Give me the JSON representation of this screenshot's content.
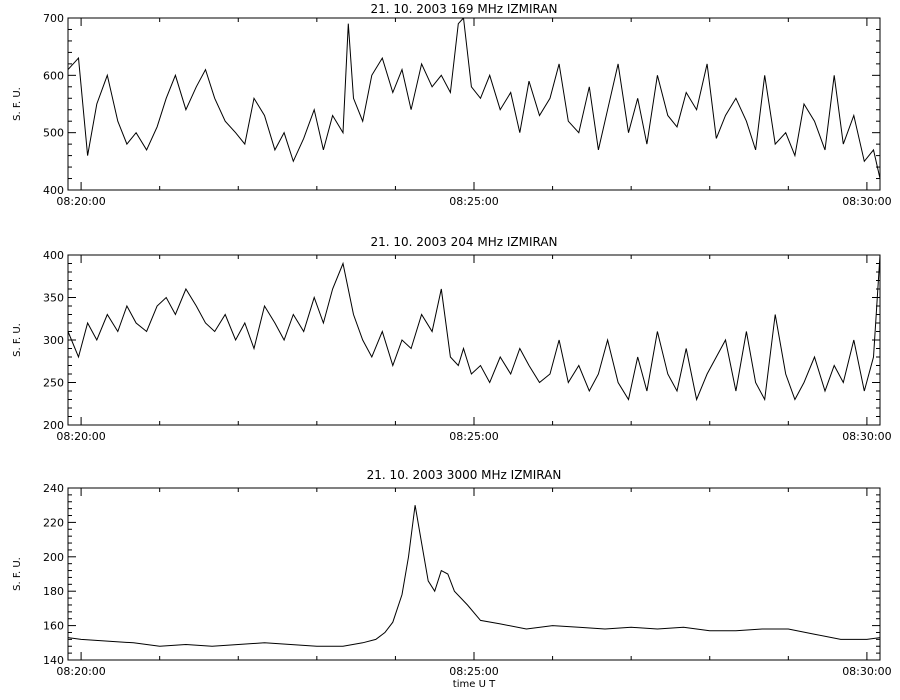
{
  "chart_data": [
    {
      "type": "line",
      "title": "21.  10.  2003    169 MHz    IZMIRAN",
      "ylabel": "S. F. U.",
      "xlabel": "",
      "xlim": [
        "08:19:50",
        "08:30:10"
      ],
      "ylim": [
        400,
        700
      ],
      "yticks": [
        400,
        500,
        600,
        700
      ],
      "xtick_labels": [
        "08:20:00",
        "08:25:00",
        "08:30:00"
      ],
      "series": [
        {
          "x": [
            "08:19:50",
            "08:19:58",
            "08:20:05",
            "08:20:12",
            "08:20:20",
            "08:20:28",
            "08:20:35",
            "08:20:42",
            "08:20:50",
            "08:20:58",
            "08:21:05",
            "08:21:12",
            "08:21:20",
            "08:21:28",
            "08:21:35",
            "08:21:42",
            "08:21:50",
            "08:21:58",
            "08:22:05",
            "08:22:12",
            "08:22:20",
            "08:22:28",
            "08:22:35",
            "08:22:42",
            "08:22:50",
            "08:22:58",
            "08:23:05",
            "08:23:12",
            "08:23:20",
            "08:23:24",
            "08:23:28",
            "08:23:35",
            "08:23:42",
            "08:23:50",
            "08:23:58",
            "08:24:05",
            "08:24:12",
            "08:24:20",
            "08:24:28",
            "08:24:35",
            "08:24:42",
            "08:24:48",
            "08:24:52",
            "08:24:58",
            "08:25:05",
            "08:25:12",
            "08:25:20",
            "08:25:28",
            "08:25:35",
            "08:25:42",
            "08:25:50",
            "08:25:58",
            "08:26:05",
            "08:26:12",
            "08:26:20",
            "08:26:28",
            "08:26:35",
            "08:26:42",
            "08:26:50",
            "08:26:58",
            "08:27:05",
            "08:27:12",
            "08:27:20",
            "08:27:28",
            "08:27:35",
            "08:27:42",
            "08:27:50",
            "08:27:58",
            "08:28:05",
            "08:28:12",
            "08:28:20",
            "08:28:28",
            "08:28:35",
            "08:28:42",
            "08:28:50",
            "08:28:58",
            "08:29:05",
            "08:29:12",
            "08:29:20",
            "08:29:28",
            "08:29:35",
            "08:29:42",
            "08:29:50",
            "08:29:58",
            "08:30:05",
            "08:30:10"
          ],
          "y": [
            610,
            630,
            460,
            550,
            600,
            520,
            480,
            500,
            470,
            510,
            560,
            600,
            540,
            580,
            610,
            560,
            520,
            500,
            480,
            560,
            530,
            470,
            500,
            450,
            490,
            540,
            470,
            530,
            500,
            690,
            560,
            520,
            600,
            630,
            570,
            610,
            540,
            620,
            580,
            600,
            570,
            690,
            700,
            580,
            560,
            600,
            540,
            570,
            500,
            590,
            530,
            560,
            620,
            520,
            500,
            580,
            470,
            540,
            620,
            500,
            560,
            480,
            600,
            530,
            510,
            570,
            540,
            620,
            490,
            530,
            560,
            520,
            470,
            600,
            480,
            500,
            460,
            550,
            520,
            470,
            600,
            480,
            530,
            450,
            470,
            420
          ]
        }
      ]
    },
    {
      "type": "line",
      "title": "21.  10.  2003    204 MHz    IZMIRAN",
      "ylabel": "S. F. U.",
      "xlabel": "",
      "xlim": [
        "08:19:50",
        "08:30:10"
      ],
      "ylim": [
        200,
        400
      ],
      "yticks": [
        200,
        250,
        300,
        350,
        400
      ],
      "xtick_labels": [
        "08:20:00",
        "08:25:00",
        "08:30:00"
      ],
      "series": [
        {
          "x": [
            "08:19:50",
            "08:19:58",
            "08:20:05",
            "08:20:12",
            "08:20:20",
            "08:20:28",
            "08:20:35",
            "08:20:42",
            "08:20:50",
            "08:20:58",
            "08:21:05",
            "08:21:12",
            "08:21:20",
            "08:21:28",
            "08:21:35",
            "08:21:42",
            "08:21:50",
            "08:21:58",
            "08:22:05",
            "08:22:12",
            "08:22:20",
            "08:22:28",
            "08:22:35",
            "08:22:42",
            "08:22:50",
            "08:22:58",
            "08:23:05",
            "08:23:12",
            "08:23:20",
            "08:23:28",
            "08:23:35",
            "08:23:42",
            "08:23:50",
            "08:23:58",
            "08:24:05",
            "08:24:12",
            "08:24:20",
            "08:24:28",
            "08:24:35",
            "08:24:42",
            "08:24:48",
            "08:24:52",
            "08:24:58",
            "08:25:05",
            "08:25:12",
            "08:25:20",
            "08:25:28",
            "08:25:35",
            "08:25:42",
            "08:25:50",
            "08:25:58",
            "08:26:05",
            "08:26:12",
            "08:26:20",
            "08:26:28",
            "08:26:35",
            "08:26:42",
            "08:26:50",
            "08:26:58",
            "08:27:05",
            "08:27:12",
            "08:27:20",
            "08:27:28",
            "08:27:35",
            "08:27:42",
            "08:27:50",
            "08:27:58",
            "08:28:05",
            "08:28:12",
            "08:28:20",
            "08:28:28",
            "08:28:35",
            "08:28:42",
            "08:28:50",
            "08:28:58",
            "08:29:05",
            "08:29:12",
            "08:29:20",
            "08:29:28",
            "08:29:35",
            "08:29:42",
            "08:29:50",
            "08:29:58",
            "08:30:05",
            "08:30:10"
          ],
          "y": [
            310,
            280,
            320,
            300,
            330,
            310,
            340,
            320,
            310,
            340,
            350,
            330,
            360,
            340,
            320,
            310,
            330,
            300,
            320,
            290,
            340,
            320,
            300,
            330,
            310,
            350,
            320,
            360,
            390,
            330,
            300,
            280,
            310,
            270,
            300,
            290,
            330,
            310,
            360,
            280,
            270,
            290,
            260,
            270,
            250,
            280,
            260,
            290,
            270,
            250,
            260,
            300,
            250,
            270,
            240,
            260,
            300,
            250,
            230,
            280,
            240,
            310,
            260,
            240,
            290,
            230,
            260,
            280,
            300,
            240,
            310,
            250,
            230,
            330,
            260,
            230,
            250,
            280,
            240,
            270,
            250,
            300,
            240,
            280,
            400
          ]
        }
      ]
    },
    {
      "type": "line",
      "title": "21.  10.  2003    3000 MHz    IZMIRAN",
      "ylabel": "S. F. U.",
      "xlabel": "time  U T",
      "xlim": [
        "08:19:50",
        "08:30:10"
      ],
      "ylim": [
        140,
        240
      ],
      "yticks": [
        140,
        160,
        180,
        200,
        220,
        240
      ],
      "xtick_labels": [
        "08:20:00",
        "08:25:00",
        "08:30:00"
      ],
      "series": [
        {
          "x": [
            "08:19:50",
            "08:20:00",
            "08:20:20",
            "08:20:40",
            "08:21:00",
            "08:21:20",
            "08:21:40",
            "08:22:00",
            "08:22:20",
            "08:22:40",
            "08:23:00",
            "08:23:20",
            "08:23:35",
            "08:23:45",
            "08:23:52",
            "08:23:58",
            "08:24:05",
            "08:24:10",
            "08:24:15",
            "08:24:20",
            "08:24:25",
            "08:24:30",
            "08:24:35",
            "08:24:40",
            "08:24:45",
            "08:24:55",
            "08:25:05",
            "08:25:20",
            "08:25:40",
            "08:26:00",
            "08:26:20",
            "08:26:40",
            "08:27:00",
            "08:27:20",
            "08:27:40",
            "08:28:00",
            "08:28:20",
            "08:28:40",
            "08:29:00",
            "08:29:20",
            "08:29:40",
            "08:30:00",
            "08:30:10"
          ],
          "y": [
            153,
            152,
            151,
            150,
            148,
            149,
            148,
            149,
            150,
            149,
            148,
            148,
            150,
            152,
            156,
            162,
            178,
            200,
            230,
            208,
            186,
            180,
            192,
            190,
            180,
            172,
            163,
            161,
            158,
            160,
            159,
            158,
            159,
            158,
            159,
            157,
            157,
            158,
            158,
            155,
            152,
            152,
            153
          ]
        }
      ]
    }
  ]
}
